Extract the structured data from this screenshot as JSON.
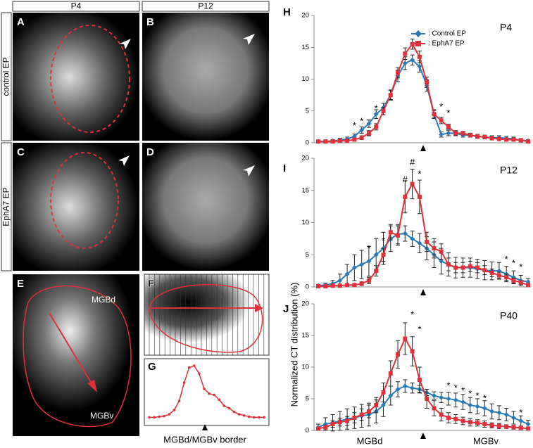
{
  "figure": {
    "column_headers": [
      "P4",
      "P12"
    ],
    "row_labels": [
      "control EP",
      "EphA7 EP"
    ],
    "panel_letters": [
      "A",
      "B",
      "C",
      "D",
      "E",
      "F",
      "G",
      "H",
      "I",
      "J"
    ],
    "region_labels": [
      "MGBd",
      "MGBv"
    ],
    "border_label": "MGBd/MGBv border",
    "y_axis_label": "Normalized CT distribution (%)",
    "x_axis_labels": [
      "MGBd",
      "MGBv"
    ]
  },
  "chart_data": [
    {
      "type": "line",
      "color": "#e0303a",
      "values": [
        0.3,
        0.3,
        0.4,
        0.5,
        0.8,
        1.5,
        3,
        6,
        8.5,
        8.8,
        7.5,
        5,
        4.2,
        4,
        3.2,
        2.2,
        1.8,
        1.2,
        0.8,
        0.6,
        0.4,
        0.3,
        0.3,
        0.3
      ]
    },
    {
      "type": "line",
      "title": "P4",
      "ylim": [
        0,
        20
      ],
      "yticks": [
        0,
        5,
        10,
        15,
        20
      ],
      "legend": true,
      "series": [
        {
          "name": ": Control EP",
          "color": "#2a7ab8",
          "marker": "diamond",
          "values": [
            0.2,
            0.2,
            0.3,
            0.4,
            0.6,
            1.0,
            2.0,
            3.0,
            4.5,
            5.5,
            7.5,
            10.5,
            12.5,
            13,
            12,
            9,
            4.5,
            1.3,
            1.5,
            1.5,
            1.2,
            1.2,
            1.0,
            0.9,
            0.8,
            0.8,
            0.7,
            0.6,
            0.4,
            0.3
          ],
          "errors": [
            0.2,
            0.2,
            0.2,
            0.3,
            0.3,
            0.4,
            0.5,
            0.6,
            0.7,
            0.7,
            0.8,
            0.9,
            1,
            0.8,
            0.9,
            0.9,
            0.7,
            0.4,
            0.4,
            0.4,
            0.3,
            0.3,
            0.3,
            0.3,
            0.3,
            0.3,
            0.3,
            0.3,
            0.2,
            0.2
          ]
        },
        {
          "name": ": EphA7 EP",
          "color": "#e0303a",
          "marker": "square",
          "values": [
            0.2,
            0.2,
            0.2,
            0.3,
            0.3,
            0.5,
            0.8,
            1.5,
            2.5,
            5,
            7.5,
            11,
            14,
            15.5,
            13.5,
            9.5,
            4.5,
            3.5,
            2.5,
            1.5,
            1.5,
            1.2,
            1.0,
            0.9,
            0.7,
            0.6,
            0.5,
            0.5,
            0.4,
            0.2
          ],
          "errors": [
            0.1,
            0.1,
            0.1,
            0.2,
            0.2,
            0.2,
            0.3,
            0.4,
            0.5,
            0.6,
            0.7,
            0.8,
            0.9,
            0.8,
            0.9,
            0.8,
            0.6,
            0.5,
            0.4,
            0.3,
            0.3,
            0.3,
            0.3,
            0.2,
            0.2,
            0.2,
            0.2,
            0.2,
            0.2,
            0.1
          ]
        }
      ],
      "annotations": [
        "*",
        "*",
        "*",
        "*",
        "*"
      ]
    },
    {
      "type": "line",
      "title": "P12",
      "ylim": [
        0,
        20
      ],
      "yticks": [
        0,
        5,
        10,
        15,
        20
      ],
      "series": [
        {
          "name": ": Control EP",
          "color": "#2a7ab8",
          "marker": "diamond",
          "values": [
            0.2,
            0.3,
            0.5,
            1.0,
            2.0,
            3.0,
            3.5,
            4.0,
            5.0,
            6.0,
            7.5,
            8.2,
            8.3,
            7.5,
            6.8,
            6.0,
            5.0,
            4.0,
            3.5,
            3.0,
            3.0,
            3.0,
            2.8,
            2.6,
            2.5,
            2.5,
            2.0,
            1.5,
            1.0,
            0.8
          ],
          "errors": [
            0.2,
            0.3,
            0.5,
            1,
            1.5,
            2,
            2.2,
            2.3,
            2.5,
            2.5,
            2,
            1.5,
            1.2,
            1.2,
            1.5,
            1.8,
            2,
            2,
            1.8,
            1.6,
            1.5,
            1.5,
            1.5,
            1.5,
            1.4,
            1.3,
            1.2,
            1,
            0.8,
            0.5
          ]
        },
        {
          "name": ": EphA7 EP",
          "color": "#e0303a",
          "marker": "square",
          "values": [
            0.1,
            0.1,
            0.2,
            0.2,
            0.3,
            0.3,
            0.5,
            1.0,
            2.5,
            5,
            8.5,
            8.0,
            14,
            16,
            14,
            7,
            6,
            5.5,
            3.5,
            3.0,
            3.0,
            3.2,
            3.0,
            2.6,
            2.2,
            1.8,
            1.5,
            1.0,
            0.7,
            0.3
          ],
          "errors": [
            0.1,
            0.1,
            0.1,
            0.1,
            0.2,
            0.2,
            0.3,
            0.5,
            0.8,
            1,
            1.2,
            1.5,
            2.5,
            2.3,
            2.6,
            1.5,
            1.5,
            1.2,
            1,
            0.8,
            0.8,
            0.8,
            0.8,
            0.7,
            0.6,
            0.5,
            0.5,
            0.4,
            0.3,
            0.2
          ]
        }
      ],
      "annotations": [
        "*",
        "*",
        "#",
        "#",
        "*",
        "*",
        "*",
        "*"
      ]
    },
    {
      "type": "line",
      "title": "P40",
      "ylim": [
        0,
        20
      ],
      "yticks": [
        0,
        5,
        10,
        15,
        20
      ],
      "series": [
        {
          "name": ": Control EP",
          "color": "#2a7ab8",
          "marker": "diamond",
          "values": [
            0.5,
            1,
            1.2,
            1.5,
            1.8,
            2,
            2.3,
            2.5,
            3,
            4,
            5.5,
            6.5,
            7,
            6.7,
            6.5,
            6,
            5.5,
            5.2,
            5,
            4.8,
            4.5,
            4,
            3.8,
            3.5,
            3,
            2.8,
            2.5,
            2,
            1.5,
            1
          ],
          "errors": [
            0.5,
            1,
            1.3,
            1.5,
            1.6,
            1.7,
            1.8,
            1.8,
            1.8,
            1.8,
            1.5,
            1.2,
            1,
            0.8,
            0.6,
            0.5,
            0.6,
            0.8,
            1,
            1.1,
            1.2,
            1.2,
            1.2,
            1.2,
            1.2,
            1.1,
            1,
            1,
            0.8,
            0.6
          ]
        },
        {
          "name": ": EphA7 EP",
          "color": "#e0303a",
          "marker": "square",
          "values": [
            0.3,
            0.5,
            1,
            1.3,
            1.5,
            2,
            2.5,
            3,
            4,
            6,
            9,
            12,
            14.5,
            12.5,
            8,
            5,
            3.5,
            2.5,
            2,
            1.8,
            1.5,
            1.3,
            1.2,
            1,
            0.8,
            0.7,
            0.6,
            0.5,
            0.4,
            0.3
          ],
          "errors": [
            0.2,
            0.3,
            0.5,
            0.6,
            0.7,
            0.8,
            0.9,
            1,
            1.2,
            1.5,
            2,
            2.2,
            2.5,
            2.3,
            2,
            1.5,
            1.2,
            1,
            0.8,
            0.7,
            0.6,
            0.6,
            0.5,
            0.5,
            0.4,
            0.4,
            0.3,
            0.3,
            0.2,
            0.2
          ]
        }
      ],
      "annotations": [
        "*",
        "*",
        "*",
        "*",
        "*",
        "*",
        "*",
        "*",
        "*"
      ]
    }
  ]
}
